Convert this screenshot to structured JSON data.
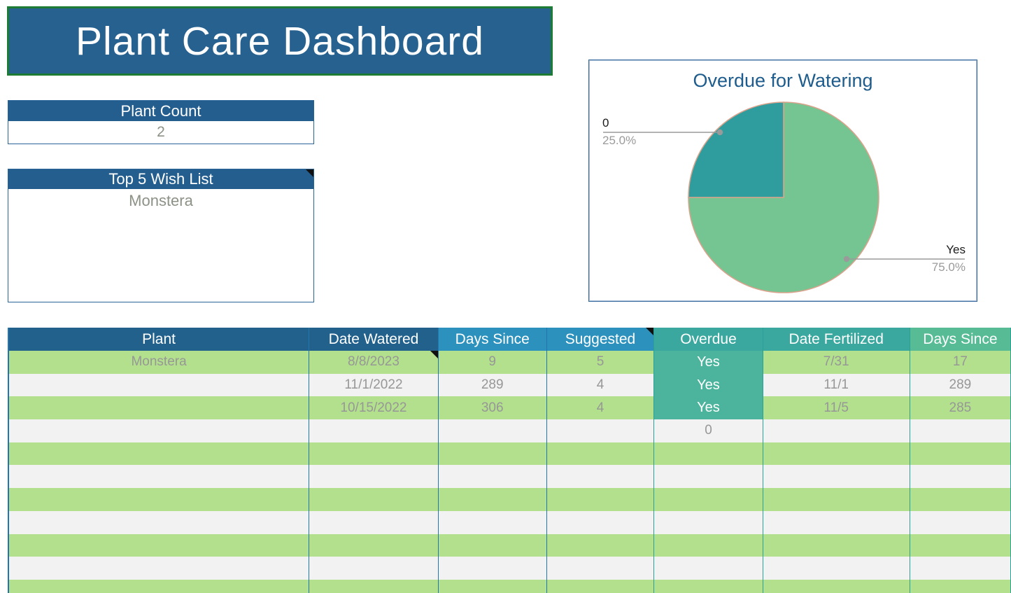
{
  "app": {
    "title": "Plant Care Dashboard"
  },
  "cards": {
    "plant_count": {
      "label": "Plant Count",
      "value": "2"
    },
    "wish_list": {
      "label": "Top 5 Wish List",
      "items": [
        "Monstera"
      ],
      "has_note": true
    }
  },
  "chart": {
    "title": "Overdue for Watering",
    "chart_data": {
      "type": "pie",
      "labels": [
        "Yes",
        "0"
      ],
      "values": [
        75.0,
        25.0
      ],
      "title": "Overdue for Watering",
      "slice_colors": [
        "#74C591",
        "#2F9C9E"
      ],
      "start_angle": "top",
      "direction": "clockwise",
      "label_format": "name above leader line, percent below",
      "callouts": [
        {
          "name": "Yes",
          "pct": "75.0%"
        },
        {
          "name": "0",
          "pct": "25.0%"
        }
      ]
    }
  },
  "table": {
    "columns": [
      {
        "key": "plant",
        "label": "Plant",
        "group": "dark_blue",
        "border": "blue"
      },
      {
        "key": "date_watered",
        "label": "Date Watered",
        "group": "dark_blue",
        "border": "blue"
      },
      {
        "key": "days_since_watered",
        "label": "Days Since",
        "group": "blue",
        "border": "blue"
      },
      {
        "key": "suggested",
        "label": "Suggested",
        "group": "blue",
        "border": "teal",
        "note": true
      },
      {
        "key": "overdue",
        "label": "Overdue",
        "group": "teal",
        "border": "teal"
      },
      {
        "key": "date_fertilized",
        "label": "Date Fertilized",
        "group": "teal",
        "border": "teal"
      },
      {
        "key": "days_since_fertilized",
        "label": "Days Since",
        "group": "green_teal",
        "border": "teal"
      }
    ],
    "rows": [
      {
        "plant": "Monstera",
        "date_watered": "8/8/2023",
        "days_since_watered": "9",
        "suggested": "5",
        "overdue": "Yes",
        "date_fertilized": "7/31",
        "days_since_fertilized": "17",
        "note_cell": "date_watered"
      },
      {
        "plant": "",
        "date_watered": "11/1/2022",
        "days_since_watered": "289",
        "suggested": "4",
        "overdue": "Yes",
        "date_fertilized": "11/1",
        "days_since_fertilized": "289"
      },
      {
        "plant": "",
        "date_watered": "10/15/2022",
        "days_since_watered": "306",
        "suggested": "4",
        "overdue": "Yes",
        "date_fertilized": "11/5",
        "days_since_fertilized": "285"
      },
      {
        "plant": "",
        "date_watered": "",
        "days_since_watered": "",
        "suggested": "",
        "overdue": "0",
        "date_fertilized": "",
        "days_since_fertilized": ""
      },
      {},
      {},
      {},
      {},
      {},
      {},
      {}
    ]
  },
  "colors": {
    "banner_bg": "#27618F",
    "banner_border": "#1E7B34",
    "card_header_bg": "#235E8F",
    "card_border": "#2A6496",
    "value_text": "#8C9286",
    "chart_border": "#35699E",
    "chart_title": "#1D5C8C",
    "pie_stroke": "#D8A38C",
    "callout_line": "#9A9A9A",
    "header_dark_blue": "#21618C",
    "header_blue": "#2C92BD",
    "header_teal": "#3BA89F",
    "header_green_teal": "#57BC95",
    "row_green": "#B2E08C",
    "row_gray": "#F2F2F2",
    "yes_cell_bg": "#4CB49C",
    "cell_text": "#979797",
    "border_blue": "#2275AE",
    "border_teal": "#2BA096"
  }
}
